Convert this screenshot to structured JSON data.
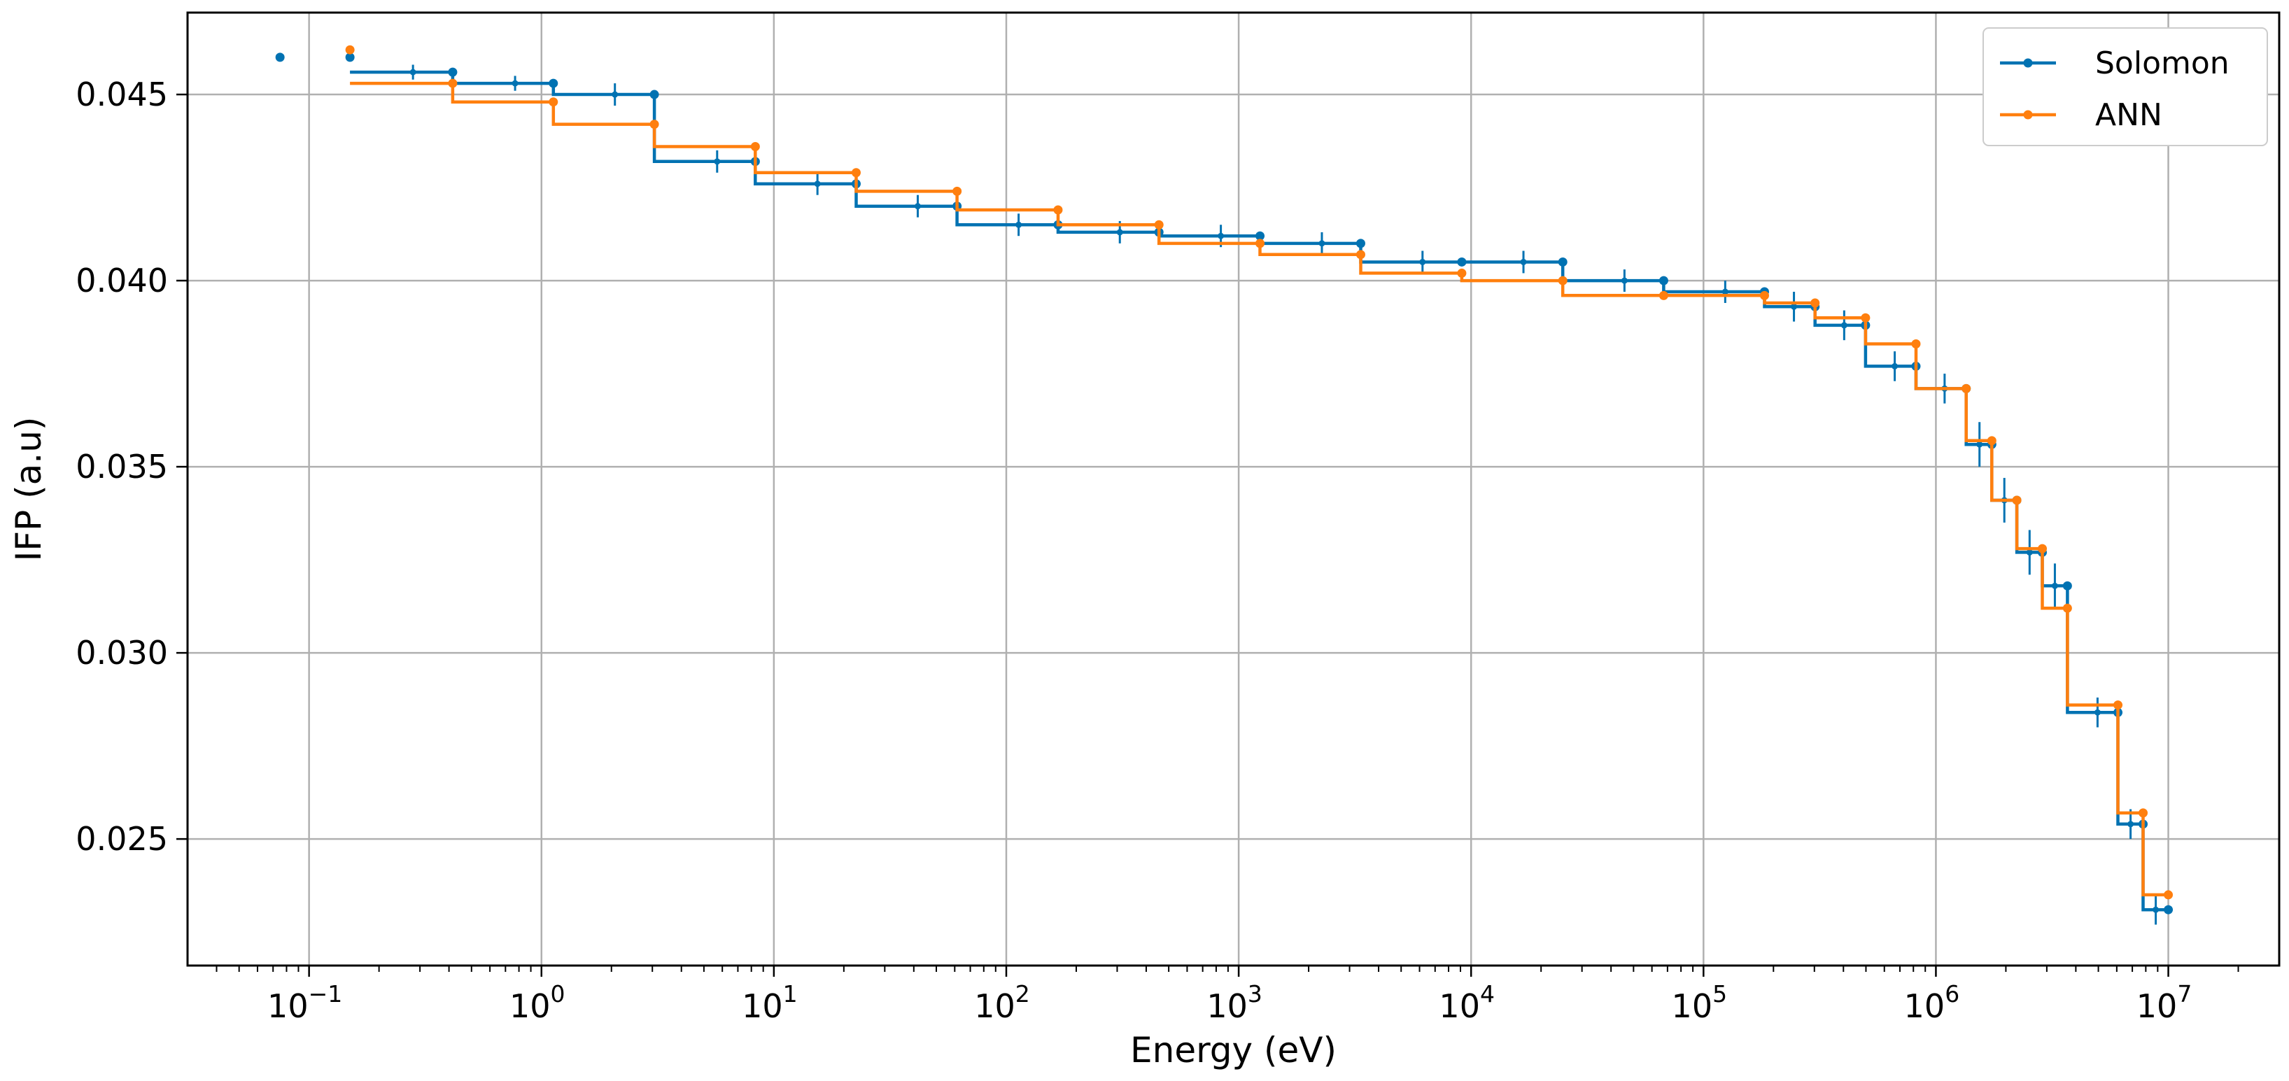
{
  "chart_data": {
    "type": "line",
    "title": "",
    "xlabel": "Energy (eV)",
    "ylabel": "IFP (a.u)",
    "xscale": "log",
    "xlim": [
      0.03,
      30000000
    ],
    "ylim": [
      0.0216,
      0.0472
    ],
    "grid": true,
    "legend": "top-right",
    "x_ticks": [
      {
        "base": "10",
        "exp": "−1",
        "value": 0.1
      },
      {
        "base": "10",
        "exp": "0",
        "value": 1
      },
      {
        "base": "10",
        "exp": "1",
        "value": 10
      },
      {
        "base": "10",
        "exp": "2",
        "value": 100
      },
      {
        "base": "10",
        "exp": "3",
        "value": 1000
      },
      {
        "base": "10",
        "exp": "4",
        "value": 10000
      },
      {
        "base": "10",
        "exp": "5",
        "value": 100000
      },
      {
        "base": "10",
        "exp": "6",
        "value": 1000000
      },
      {
        "base": "10",
        "exp": "7",
        "value": 10000000
      }
    ],
    "y_ticks": [
      {
        "label": "0.025",
        "value": 0.025
      },
      {
        "label": "0.030",
        "value": 0.03
      },
      {
        "label": "0.035",
        "value": 0.035
      },
      {
        "label": "0.040",
        "value": 0.04
      },
      {
        "label": "0.045",
        "value": 0.045
      }
    ],
    "series": [
      {
        "name": "Solomon",
        "color": "#0072B2",
        "first_point": [
          0.075,
          0.046
        ],
        "edges": [
          0.15,
          0.415,
          1.125,
          3.06,
          8.32,
          22.6,
          61.4,
          167,
          454,
          1235,
          3350,
          9120,
          24800,
          67400,
          183000,
          302000,
          498000,
          821000,
          1350000,
          1740000,
          2230000,
          2870000,
          3680000,
          6070000,
          7790000,
          10000000
        ],
        "levels": [
          0.0456,
          0.0453,
          0.045,
          0.0432,
          0.0426,
          0.042,
          0.0415,
          0.0413,
          0.0412,
          0.041,
          0.0405,
          0.0405,
          0.04,
          0.0397,
          0.0393,
          0.0388,
          0.0377,
          0.0371,
          0.0356,
          0.0341,
          0.0327,
          0.0318,
          0.0284,
          0.0254,
          0.0231
        ],
        "edge_markers": [
          0.046,
          0.0456,
          0.0453,
          0.045,
          0.0432,
          0.0426,
          0.042,
          0.0415,
          0.0413,
          0.0412,
          0.041,
          0.0405,
          0.0405,
          0.04,
          0.0397,
          0.0393,
          0.0388,
          0.0377,
          0.0371,
          0.0356,
          0.0341,
          0.0327,
          0.0318,
          0.0284,
          0.0254,
          0.0231
        ],
        "errorbars": [
          {
            "x": 0.28,
            "y": 0.0456,
            "err": 0.0002
          },
          {
            "x": 0.77,
            "y": 0.0453,
            "err": 0.0002
          },
          {
            "x": 2.07,
            "y": 0.045,
            "err": 0.0003
          },
          {
            "x": 5.7,
            "y": 0.0432,
            "err": 0.0003
          },
          {
            "x": 15.4,
            "y": 0.0426,
            "err": 0.0003
          },
          {
            "x": 41.6,
            "y": 0.042,
            "err": 0.0003
          },
          {
            "x": 113,
            "y": 0.0415,
            "err": 0.0003
          },
          {
            "x": 308,
            "y": 0.0413,
            "err": 0.0003
          },
          {
            "x": 838,
            "y": 0.0412,
            "err": 0.0003
          },
          {
            "x": 2280,
            "y": 0.041,
            "err": 0.0003
          },
          {
            "x": 6180,
            "y": 0.0405,
            "err": 0.0003
          },
          {
            "x": 16800,
            "y": 0.0405,
            "err": 0.0003
          },
          {
            "x": 45700,
            "y": 0.04,
            "err": 0.0003
          },
          {
            "x": 124000,
            "y": 0.0397,
            "err": 0.0003
          },
          {
            "x": 245000,
            "y": 0.0393,
            "err": 0.0004
          },
          {
            "x": 403000,
            "y": 0.0388,
            "err": 0.0004
          },
          {
            "x": 665000,
            "y": 0.0377,
            "err": 0.0004
          },
          {
            "x": 1090000,
            "y": 0.0371,
            "err": 0.0004
          },
          {
            "x": 1540000,
            "y": 0.0356,
            "err": 0.0006
          },
          {
            "x": 1970000,
            "y": 0.0341,
            "err": 0.0006
          },
          {
            "x": 2530000,
            "y": 0.0327,
            "err": 0.0006
          },
          {
            "x": 3250000,
            "y": 0.0318,
            "err": 0.0006
          },
          {
            "x": 4960000,
            "y": 0.0284,
            "err": 0.0004
          },
          {
            "x": 6880000,
            "y": 0.0254,
            "err": 0.0004
          },
          {
            "x": 8830000,
            "y": 0.0231,
            "err": 0.0004
          }
        ]
      },
      {
        "name": "ANN",
        "color": "#FF7F0E",
        "edges": [
          0.15,
          0.415,
          1.125,
          3.06,
          8.32,
          22.6,
          61.4,
          167,
          454,
          1235,
          3350,
          9120,
          24800,
          67400,
          183000,
          302000,
          498000,
          821000,
          1350000,
          1740000,
          2230000,
          2870000,
          3680000,
          6070000,
          7790000,
          10000000
        ],
        "levels": [
          0.0453,
          0.0448,
          0.0442,
          0.0436,
          0.0429,
          0.0424,
          0.0419,
          0.0415,
          0.041,
          0.0407,
          0.0402,
          0.04,
          0.0396,
          0.0396,
          0.0394,
          0.039,
          0.0383,
          0.0371,
          0.0357,
          0.0341,
          0.0328,
          0.0312,
          0.0286,
          0.0257,
          0.0235
        ],
        "edge_markers": [
          0.0462,
          0.0453,
          0.0448,
          0.0442,
          0.0436,
          0.0429,
          0.0424,
          0.0419,
          0.0415,
          0.041,
          0.0407,
          0.0402,
          0.04,
          0.0396,
          0.0396,
          0.0394,
          0.039,
          0.0383,
          0.0371,
          0.0357,
          0.0341,
          0.0328,
          0.0312,
          0.0286,
          0.0257,
          0.0235
        ]
      }
    ]
  }
}
